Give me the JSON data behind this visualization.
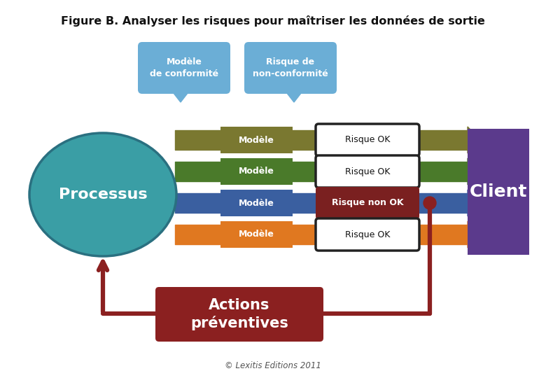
{
  "title": "Figure B. Analyser les risques pour maîtriser les données de sortie",
  "subtitle": "© Lexitis Editions 2011",
  "bubble1_text": "Modèle\nde conformité",
  "bubble2_text": "Risque de\nnon-conformité",
  "bubble_color": "#6BAED6",
  "processus_text": "Processus",
  "processus_color": "#3A9EA5",
  "processus_edge": "#2A7080",
  "client_text": "Client",
  "client_color": "#5B3A8C",
  "actions_text": "Actions\npréventives",
  "actions_color": "#8B2020",
  "rows": [
    {
      "modele_color": "#7A7830",
      "risque_text": "Risque OK",
      "risque_bg": "#FFFFFF",
      "arrow_color": "#7A7830"
    },
    {
      "modele_color": "#4A7A2A",
      "risque_text": "Risque OK",
      "risque_bg": "#FFFFFF",
      "arrow_color": "#4A7A2A"
    },
    {
      "modele_color": "#3A5FA0",
      "risque_text": "Risque non OK",
      "risque_bg": "#7A2020",
      "arrow_color": "#3A5FA0"
    },
    {
      "modele_color": "#E07820",
      "risque_text": "Risque OK",
      "risque_bg": "#FFFFFF",
      "arrow_color": "#E07820"
    }
  ],
  "feedback_color": "#8B2020",
  "bg_color": "#FFFFFF",
  "title_fontsize": 11.5,
  "proc_fontsize": 16,
  "client_fontsize": 18,
  "actions_fontsize": 15,
  "row_label_fontsize": 9,
  "risque_fontsize": 9,
  "bubble_fontsize": 9
}
